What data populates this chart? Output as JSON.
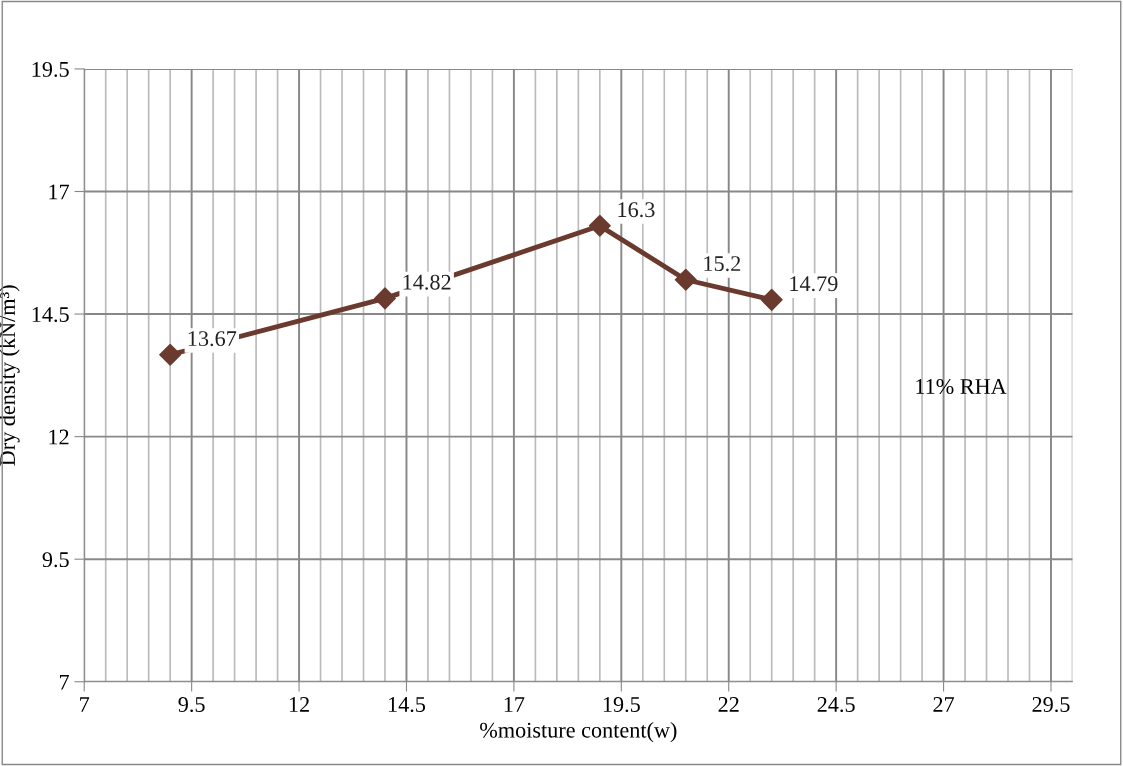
{
  "chart_data": {
    "type": "line",
    "xlabel": "%moisture content(w)",
    "ylabel": "Dry density (kN/m³)",
    "x": [
      9,
      14,
      19,
      21,
      23
    ],
    "series": [
      {
        "color": "#6b3a2e",
        "values": [
          13.67,
          14.82,
          16.3,
          15.2,
          14.79
        ]
      }
    ],
    "data_labels": true,
    "marker": "diamond",
    "grid": true,
    "xlim": [
      7,
      30
    ],
    "xticks": [
      7,
      9.5,
      12,
      14.5,
      17,
      19.5,
      22,
      24.5,
      27,
      29.5
    ],
    "ylim": [
      7,
      19.5
    ],
    "yticks": [
      7,
      9.5,
      12,
      14.5,
      17,
      19.5
    ],
    "annotations": [
      "11% RHA"
    ]
  }
}
